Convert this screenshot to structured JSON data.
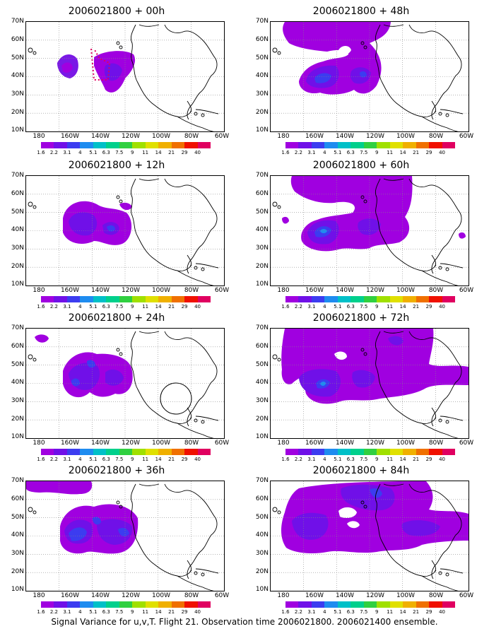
{
  "caption": "Signal Variance for u,v,T. Flight 21. Observation time 2006021800. 2006021400 ensemble.",
  "lat_labels": [
    "70N",
    "60N",
    "50N",
    "40N",
    "30N",
    "20N",
    "10N"
  ],
  "lon_labels": [
    "180",
    "160W",
    "140W",
    "120W",
    "100W",
    "80W",
    "60W"
  ],
  "colorbar": {
    "labels": [
      "1.6",
      "2.2",
      "3.1",
      "4",
      "5.1",
      "6.3",
      "7.5",
      "9",
      "11",
      "14",
      "21",
      "29",
      "40"
    ],
    "colors": [
      "#a000e0",
      "#7010e8",
      "#3c3cf0",
      "#1e8cf0",
      "#00c0c8",
      "#00d08c",
      "#30d040",
      "#a0e000",
      "#e0e000",
      "#f0b000",
      "#f07000",
      "#f01000",
      "#e00060"
    ]
  },
  "panels": [
    {
      "title": "2006021800 + 00h"
    },
    {
      "title": "2006021800 + 48h"
    },
    {
      "title": "2006021800 + 12h"
    },
    {
      "title": "2006021800 + 60h"
    },
    {
      "title": "2006021800 + 24h"
    },
    {
      "title": "2006021800 + 72h"
    },
    {
      "title": "2006021800 + 36h"
    },
    {
      "title": "2006021800 + 84h"
    }
  ]
}
